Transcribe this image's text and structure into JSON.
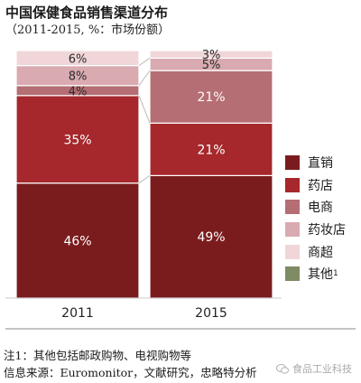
{
  "title": "中国保健食品销售渠道分布",
  "subtitle": "（2011-2015, %：市场份额）",
  "chart_data": {
    "type": "bar",
    "stacked": true,
    "categories": [
      "2011",
      "2015"
    ],
    "series": [
      {
        "name": "直销",
        "color": "#7a1c1e",
        "values": [
          46,
          49
        ],
        "labels": [
          "46%",
          "49%"
        ]
      },
      {
        "name": "药店",
        "color": "#a6282c",
        "values": [
          35,
          21
        ],
        "labels": [
          "35%",
          "21%"
        ]
      },
      {
        "name": "电商",
        "color": "#b56e73",
        "values": [
          4,
          21
        ],
        "labels": [
          "4%",
          "21%"
        ]
      },
      {
        "name": "药妆店",
        "color": "#d9aab0",
        "values": [
          8,
          5
        ],
        "labels": [
          "8%",
          "5%"
        ]
      },
      {
        "name": "商超",
        "color": "#f0d6d8",
        "values": [
          6,
          3
        ],
        "labels": [
          "6%",
          "3%"
        ]
      },
      {
        "name": "其他",
        "sup": "1",
        "color": "#7f8b63",
        "values": [
          1,
          1
        ],
        "labels": [
          "",
          ""
        ]
      }
    ],
    "ylim": [
      0,
      100
    ],
    "grid": false,
    "legend": "right"
  },
  "notes": {
    "line1": "注1：其他包括邮政购物、电视购物等",
    "line2": "信息来源：Euromonitor，文献研究，忠略特分析"
  },
  "watermark": "食品工业科技"
}
